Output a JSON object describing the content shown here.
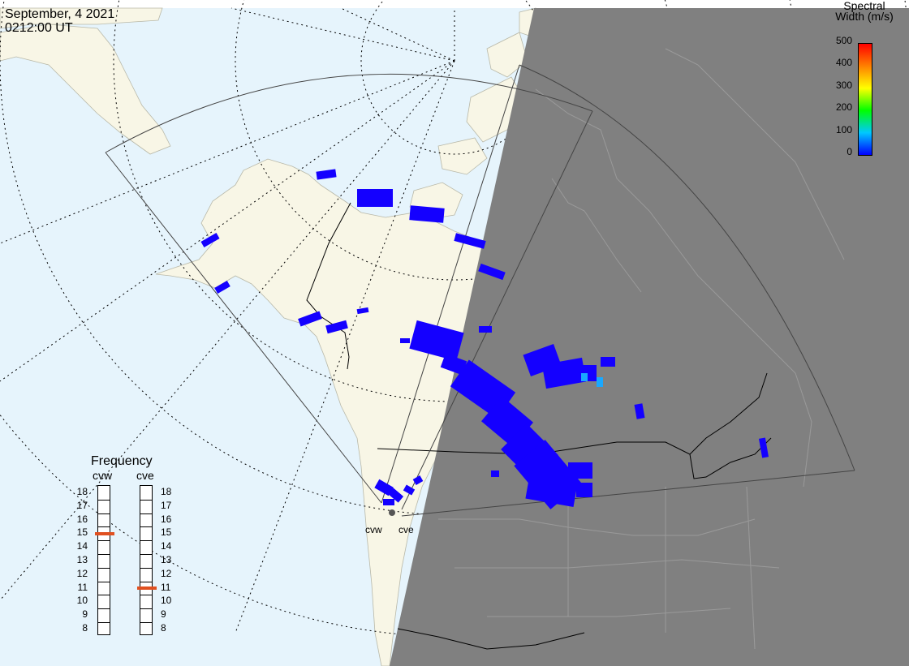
{
  "header": {
    "date": "September, 4 2021",
    "time": "0212:00 UT"
  },
  "colorbar": {
    "title_line1": "Spectral",
    "title_line2": "Width (m/s)",
    "ticks": [
      "500",
      "400",
      "300",
      "200",
      "100",
      "0"
    ],
    "min": 0,
    "max": 500,
    "colors": [
      "#0000ff",
      "#00c8ff",
      "#00ff00",
      "#ffff00",
      "#ff8000",
      "#ff0000"
    ]
  },
  "frequency": {
    "title": "Frequency",
    "radars": [
      {
        "name": "cvw",
        "selected_mhz": 15
      },
      {
        "name": "cve",
        "selected_mhz": 11
      }
    ],
    "scale": [
      "18",
      "17",
      "16",
      "15",
      "14",
      "13",
      "12",
      "11",
      "10",
      "9",
      "8"
    ],
    "marker_color": "#e05020"
  },
  "radar_sites": {
    "labels": [
      "cvw",
      "cve"
    ]
  },
  "colors": {
    "ocean": "#e6f4fc",
    "land": "#f8f6e6",
    "night": "#808080",
    "echo": "#1400ff",
    "echo_high": "#19a8ff"
  }
}
